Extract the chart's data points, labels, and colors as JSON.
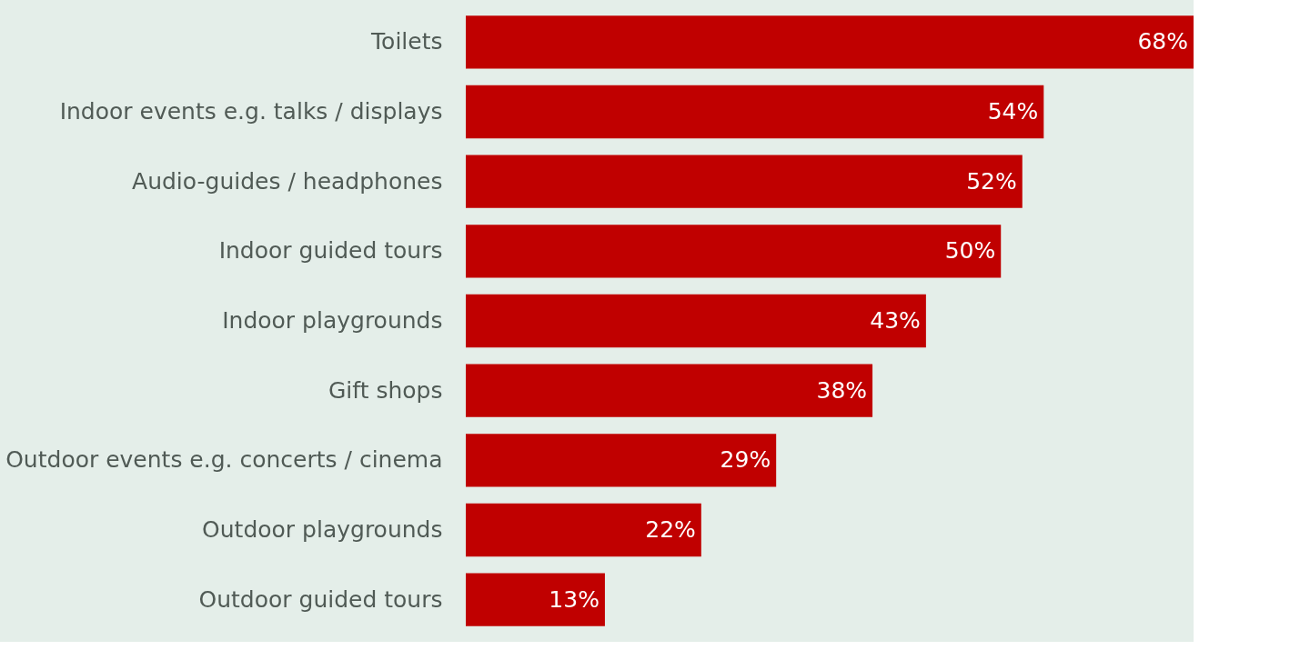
{
  "chart_data": {
    "type": "bar",
    "orientation": "horizontal",
    "categories": [
      "Toilets",
      "Indoor events e.g. talks / displays",
      "Audio-guides / headphones",
      "Indoor guided tours",
      "Indoor playgrounds",
      "Gift shops",
      "Outdoor events e.g. concerts / cinema",
      "Outdoor playgrounds",
      "Outdoor guided tours"
    ],
    "values": [
      68,
      54,
      52,
      50,
      43,
      38,
      29,
      22,
      13
    ],
    "value_labels": [
      "68%",
      "54%",
      "52%",
      "50%",
      "43%",
      "38%",
      "29%",
      "22%",
      "13%"
    ],
    "color": "#c00000",
    "grid": false
  }
}
